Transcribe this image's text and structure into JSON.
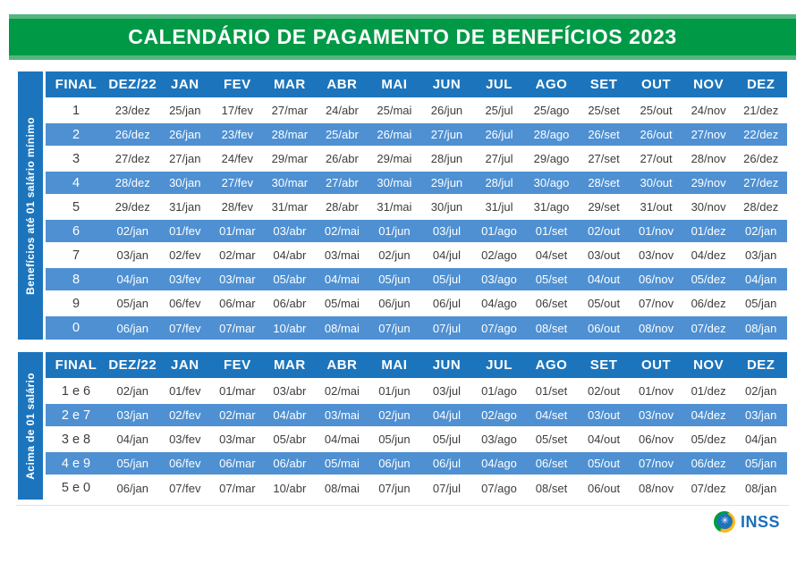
{
  "page": {
    "title": "CALENDÁRIO DE PAGAMENTO DE BENEFÍCIOS 2023"
  },
  "colors": {
    "banner_green": "#009946",
    "banner_green_light": "#55b57e",
    "header_blue": "#1c75bc",
    "stripe_blue": "#4e90d2",
    "cell_text": "#3d3d3c",
    "logo_blue": "#1d6fb8"
  },
  "tables": [
    {
      "side_label": "Benefícios até 01 salário mínimo",
      "columns": [
        "FINAL",
        "DEZ/22",
        "JAN",
        "FEV",
        "MAR",
        "ABR",
        "MAI",
        "JUN",
        "JUL",
        "AGO",
        "SET",
        "OUT",
        "NOV",
        "DEZ"
      ],
      "rows": [
        {
          "final": "1",
          "dates": [
            "23/dez",
            "25/jan",
            "17/fev",
            "27/mar",
            "24/abr",
            "25/mai",
            "26/jun",
            "25/jul",
            "25/ago",
            "25/set",
            "25/out",
            "24/nov",
            "21/dez"
          ]
        },
        {
          "final": "2",
          "dates": [
            "26/dez",
            "26/jan",
            "23/fev",
            "28/mar",
            "25/abr",
            "26/mai",
            "27/jun",
            "26/jul",
            "28/ago",
            "26/set",
            "26/out",
            "27/nov",
            "22/dez"
          ]
        },
        {
          "final": "3",
          "dates": [
            "27/dez",
            "27/jan",
            "24/fev",
            "29/mar",
            "26/abr",
            "29/mai",
            "28/jun",
            "27/jul",
            "29/ago",
            "27/set",
            "27/out",
            "28/nov",
            "26/dez"
          ]
        },
        {
          "final": "4",
          "dates": [
            "28/dez",
            "30/jan",
            "27/fev",
            "30/mar",
            "27/abr",
            "30/mai",
            "29/jun",
            "28/jul",
            "30/ago",
            "28/set",
            "30/out",
            "29/nov",
            "27/dez"
          ]
        },
        {
          "final": "5",
          "dates": [
            "29/dez",
            "31/jan",
            "28/fev",
            "31/mar",
            "28/abr",
            "31/mai",
            "30/jun",
            "31/jul",
            "31/ago",
            "29/set",
            "31/out",
            "30/nov",
            "28/dez"
          ]
        },
        {
          "final": "6",
          "dates": [
            "02/jan",
            "01/fev",
            "01/mar",
            "03/abr",
            "02/mai",
            "01/jun",
            "03/jul",
            "01/ago",
            "01/set",
            "02/out",
            "01/nov",
            "01/dez",
            "02/jan"
          ]
        },
        {
          "final": "7",
          "dates": [
            "03/jan",
            "02/fev",
            "02/mar",
            "04/abr",
            "03/mai",
            "02/jun",
            "04/jul",
            "02/ago",
            "04/set",
            "03/out",
            "03/nov",
            "04/dez",
            "03/jan"
          ]
        },
        {
          "final": "8",
          "dates": [
            "04/jan",
            "03/fev",
            "03/mar",
            "05/abr",
            "04/mai",
            "05/jun",
            "05/jul",
            "03/ago",
            "05/set",
            "04/out",
            "06/nov",
            "05/dez",
            "04/jan"
          ]
        },
        {
          "final": "9",
          "dates": [
            "05/jan",
            "06/fev",
            "06/mar",
            "06/abr",
            "05/mai",
            "06/jun",
            "06/jul",
            "04/ago",
            "06/set",
            "05/out",
            "07/nov",
            "06/dez",
            "05/jan"
          ]
        },
        {
          "final": "0",
          "dates": [
            "06/jan",
            "07/fev",
            "07/mar",
            "10/abr",
            "08/mai",
            "07/jun",
            "07/jul",
            "07/ago",
            "08/set",
            "06/out",
            "08/nov",
            "07/dez",
            "08/jan"
          ]
        }
      ]
    },
    {
      "side_label": "Acima de 01 salário",
      "columns": [
        "FINAL",
        "DEZ/22",
        "JAN",
        "FEV",
        "MAR",
        "ABR",
        "MAI",
        "JUN",
        "JUL",
        "AGO",
        "SET",
        "OUT",
        "NOV",
        "DEZ"
      ],
      "rows": [
        {
          "final": "1 e 6",
          "dates": [
            "02/jan",
            "01/fev",
            "01/mar",
            "03/abr",
            "02/mai",
            "01/jun",
            "03/jul",
            "01/ago",
            "01/set",
            "02/out",
            "01/nov",
            "01/dez",
            "02/jan"
          ]
        },
        {
          "final": "2 e 7",
          "dates": [
            "03/jan",
            "02/fev",
            "02/mar",
            "04/abr",
            "03/mai",
            "02/jun",
            "04/jul",
            "02/ago",
            "04/set",
            "03/out",
            "03/nov",
            "04/dez",
            "03/jan"
          ]
        },
        {
          "final": "3 e 8",
          "dates": [
            "04/jan",
            "03/fev",
            "03/mar",
            "05/abr",
            "04/mai",
            "05/jun",
            "05/jul",
            "03/ago",
            "05/set",
            "04/out",
            "06/nov",
            "05/dez",
            "04/jan"
          ]
        },
        {
          "final": "4 e 9",
          "dates": [
            "05/jan",
            "06/fev",
            "06/mar",
            "06/abr",
            "05/mai",
            "06/jun",
            "06/jul",
            "04/ago",
            "06/set",
            "05/out",
            "07/nov",
            "06/dez",
            "05/jan"
          ]
        },
        {
          "final": "5 e 0",
          "dates": [
            "06/jan",
            "07/fev",
            "07/mar",
            "10/abr",
            "08/mai",
            "07/jun",
            "07/jul",
            "07/ago",
            "08/set",
            "06/out",
            "08/nov",
            "07/dez",
            "08/jan"
          ]
        }
      ]
    }
  ],
  "footer": {
    "logo_text": "INSS",
    "logo_icon": "inss-globe-icon",
    "logo_glyph": "✳"
  }
}
